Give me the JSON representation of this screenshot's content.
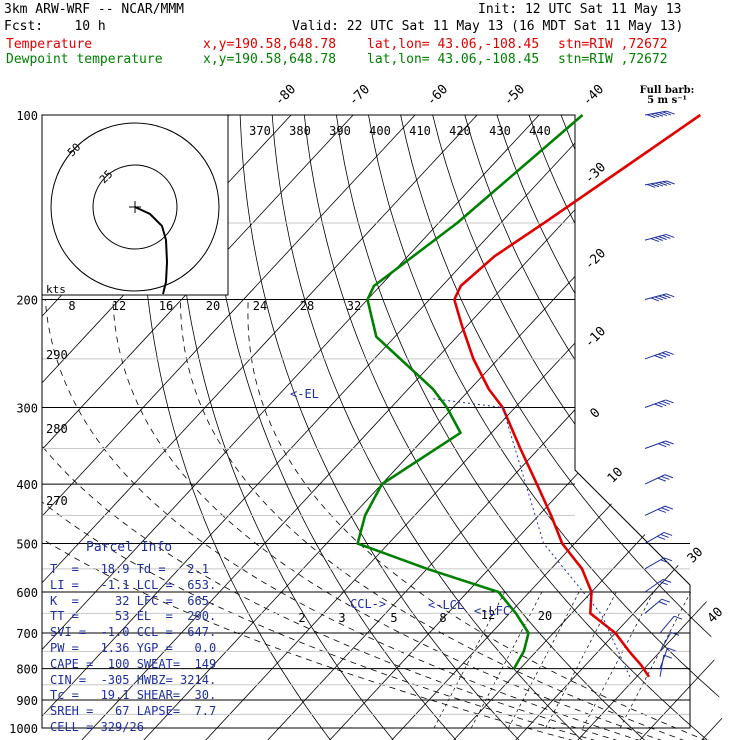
{
  "header": {
    "model": "3km ARW-WRF -- NCAR/MMM",
    "init": "Init: 12 UTC Sat 11 May 13",
    "fcst": "Fcst:    10 h",
    "valid": "Valid: 22 UTC Sat 11 May 13 (16 MDT Sat 11 May 13)",
    "temperature_line": {
      "name": "Temperature",
      "xy": "x,y=190.58,648.78",
      "latlon": "lat,lon= 43.06,-108.45",
      "stn": "stn=RIW ,72672"
    },
    "dewpoint_line": {
      "name": "Dewpoint temperature",
      "xy": "x,y=190.58,648.78",
      "latlon": "lat,lon= 43.06,-108.45",
      "stn": "stn=RIW ,72672"
    }
  },
  "colors": {
    "temperature": "#e00000",
    "dewpoint": "#008000",
    "parcel": "#1f2f9f"
  },
  "pressure_levels": [
    "100",
    "200",
    "300",
    "400",
    "500",
    "600",
    "700",
    "800",
    "900",
    "1000"
  ],
  "isotherm_labels": [
    "-80",
    "-70",
    "-60",
    "-50",
    "-40",
    "-30",
    "-20",
    "-10",
    "0",
    "10",
    "30",
    "40"
  ],
  "theta_e_labels": [
    "370",
    "380",
    "390",
    "400",
    "410",
    "420",
    "430",
    "440"
  ],
  "hodograph": {
    "speed_unit": "kts",
    "speed_ticks": [
      "8",
      "12",
      "16",
      "20",
      "24",
      "28",
      "32"
    ],
    "ring_labels": [
      "50",
      "25"
    ]
  },
  "theta_labels": [
    "290",
    "280",
    "270"
  ],
  "mixing_ratio_labels": [
    "2",
    "3",
    "5",
    "8",
    "12",
    "20"
  ],
  "level_markers": {
    "el": "<-EL",
    "lcl": "<-LCL",
    "lfc": "<-LFC",
    "ccl": "CCL->"
  },
  "barb_legend": {
    "title": "Full barb:",
    "unit": "5 m s⁻¹"
  },
  "parcel_info": {
    "title": "Parcel Info",
    "rows": [
      "T  =   18.9 Td =   2.1",
      "LI =   -1.1 LCL =  653.",
      "K  =     32 LFC =  665.",
      "TT =     53 EL  =  290.",
      "SVI =  -1.0 CCL =  647.",
      "PW =   1.36 YGP =   0.0",
      "CAPE =  100 SWEAT=  149",
      "CIN =  -305 HWBZ= 3214.",
      "Tc =   19.1 SHEAR=  30.",
      "SREH =   67 LAPSE=  7.7",
      "CELL = 329/26"
    ]
  },
  "chart_data": {
    "type": "line",
    "title": "",
    "xlabel": "Temperature (°C, skewed)",
    "ylabel": "Pressure (hPa)",
    "ylim": [
      100,
      1000
    ],
    "y_scale": "log",
    "grid": true,
    "series": [
      {
        "name": "Temperature",
        "pressure": [
          100,
          120,
          150,
          170,
          190,
          200,
          220,
          250,
          280,
          300,
          350,
          400,
          450,
          500,
          550,
          600,
          650,
          700,
          750,
          790,
          825
        ],
        "values": [
          -54,
          -58,
          -63,
          -66,
          -67,
          -66,
          -61,
          -54,
          -47,
          -42,
          -33,
          -25,
          -18,
          -12,
          -5,
          0,
          3,
          10,
          15,
          19,
          22
        ]
      },
      {
        "name": "Dewpoint temperature",
        "pressure": [
          100,
          150,
          190,
          200,
          230,
          280,
          300,
          330,
          400,
          450,
          500,
          550,
          600,
          650,
          700,
          750,
          800
        ],
        "values": [
          -73,
          -77,
          -81,
          -80,
          -73,
          -56,
          -51,
          -45,
          -50,
          -48,
          -45,
          -30,
          -15,
          -9,
          -4,
          -2,
          -1
        ]
      }
    ],
    "wind_barbs": {
      "pressure": [
        100,
        130,
        160,
        200,
        250,
        300,
        350,
        400,
        450,
        500,
        550,
        600,
        650,
        700,
        750,
        800,
        825
      ],
      "speed_ms": [
        30,
        30,
        25,
        25,
        20,
        20,
        15,
        15,
        15,
        15,
        10,
        10,
        10,
        5,
        5,
        5,
        5
      ],
      "direction_deg": [
        260,
        260,
        255,
        255,
        250,
        250,
        250,
        245,
        245,
        240,
        240,
        235,
        230,
        220,
        210,
        200,
        190
      ]
    }
  }
}
